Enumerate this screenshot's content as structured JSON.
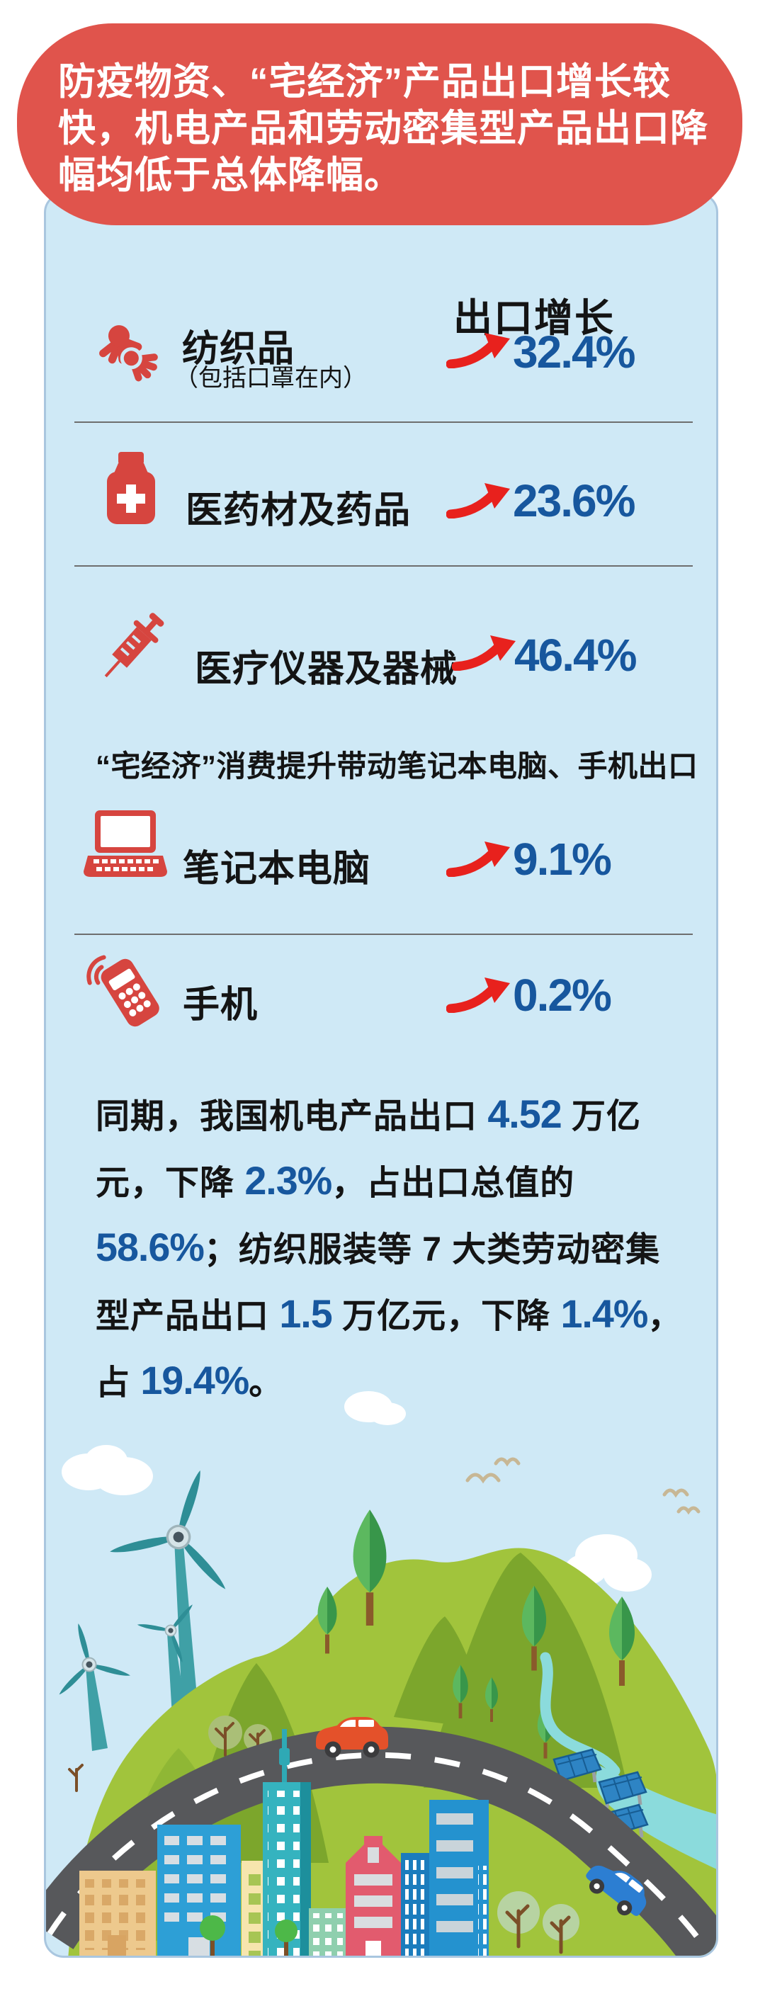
{
  "banner": {
    "lines": [
      "防疫物资、“宅经济”产品出口增长较",
      "快，机电产品和劳动密集型产品出口降",
      "幅均低于总体降幅。"
    ],
    "full_text": "防疫物资、“宅经济”产品出口增长较快，机电产品和劳动密集型产品出口降幅均低于总体降幅。"
  },
  "panel": {
    "header": "出口增长",
    "rows": [
      {
        "icon": "gloves-icon",
        "title": "纺织品",
        "subtitle": "（包括口罩在内）",
        "value": "32.4%"
      },
      {
        "icon": "medicine-bottle-icon",
        "title": "医药材及药品",
        "value": "23.6%"
      },
      {
        "icon": "syringe-icon",
        "title": "医疗仪器及器械",
        "value": "46.4%"
      },
      {
        "icon": "laptop-icon",
        "title": "笔记本电脑",
        "value": "9.1%"
      },
      {
        "icon": "mobile-phone-icon",
        "title": "手机",
        "value": "0.2%"
      }
    ],
    "note": "“宅经济”消费提升带动笔记本电脑、手机出口",
    "paragraph_segments": [
      {
        "text": "同期，我国机电产品出口 "
      },
      {
        "text": "4.52",
        "highlight": true
      },
      {
        "text": " 万亿元，下降 "
      },
      {
        "text": "2.3%",
        "highlight": true
      },
      {
        "text": "，占出口总值的 "
      },
      {
        "text": "58.6%",
        "highlight": true
      },
      {
        "text": "；纺织服装等 7 大类劳动密集型产品出口 "
      },
      {
        "text": "1.5",
        "highlight": true
      },
      {
        "text": " 万亿元，下降 "
      },
      {
        "text": "1.4%",
        "highlight": true
      },
      {
        "text": "，占 "
      },
      {
        "text": "19.4%",
        "highlight": true
      },
      {
        "text": "。"
      }
    ]
  },
  "colors": {
    "banner-bg": "#e0544c",
    "card-bg": "#cfe9f6",
    "card-border": "#a9c6df",
    "icon-red": "#d6453f",
    "arrow-red": "#e8211d",
    "number-blue": "#17579e",
    "text-black": "#141414",
    "divider": "#6e6e6e"
  },
  "chart_data": {
    "type": "table",
    "title": "出口增长",
    "categories": [
      "纺织品（包括口罩在内）",
      "医药材及药品",
      "医疗仪器及器械",
      "笔记本电脑",
      "手机"
    ],
    "values": [
      32.4,
      23.6,
      46.4,
      9.1,
      0.2
    ],
    "unit": "%",
    "annotations": [
      "防疫物资、“宅经济”产品出口增长较快，机电产品和劳动密集型产品出口降幅均低于总体降幅。",
      "“宅经济”消费提升带动笔记本电脑、手机出口",
      "同期，我国机电产品出口4.52万亿元，下降2.3%，占出口总值的58.6%",
      "纺织服装等7大类劳动密集型产品出口1.5万亿元，下降1.4%，占19.4%"
    ]
  }
}
